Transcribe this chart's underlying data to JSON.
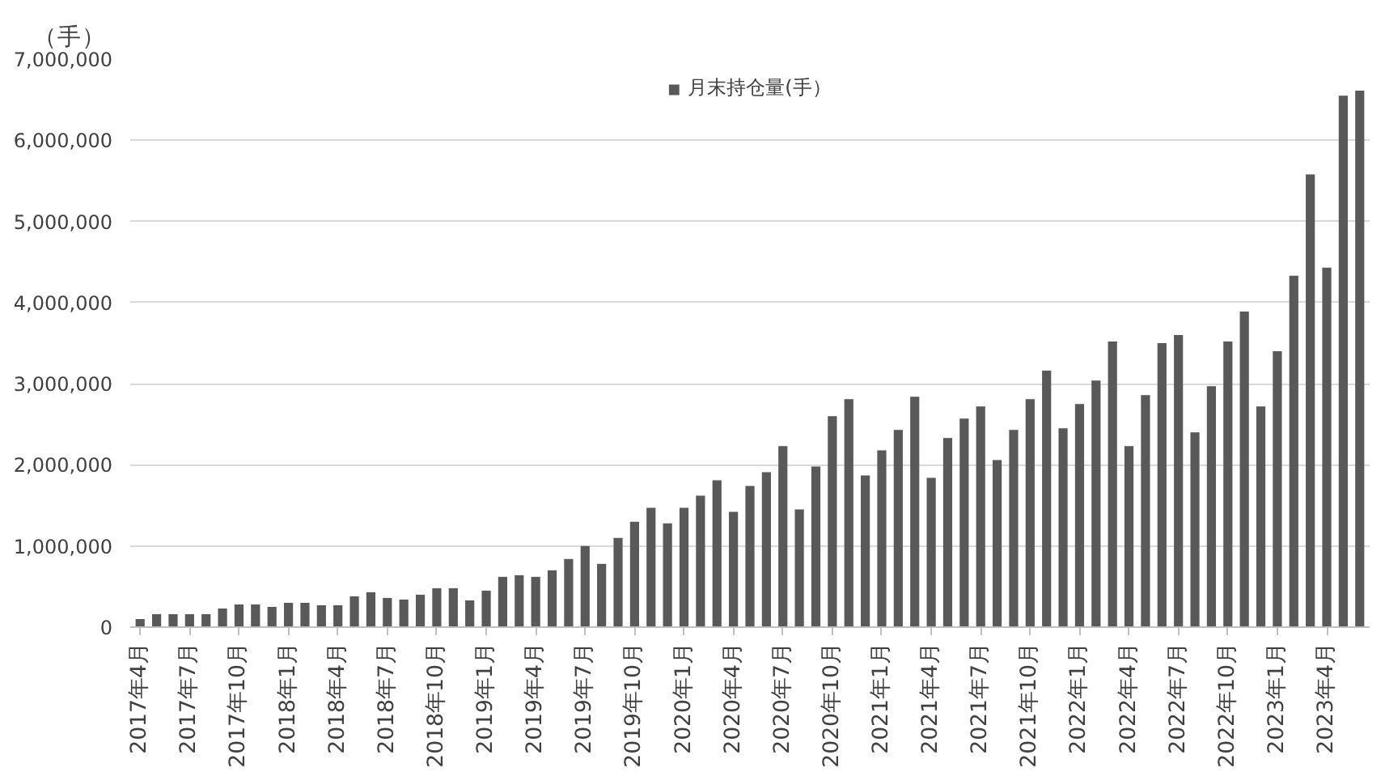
{
  "chart_data": {
    "type": "bar",
    "ylabel": "（手）",
    "categories": [
      "2017年4月",
      null,
      null,
      "2017年7月",
      null,
      null,
      "2017年10月",
      null,
      null,
      "2018年1月",
      null,
      null,
      "2018年4月",
      null,
      null,
      "2018年7月",
      null,
      null,
      "2018年10月",
      null,
      null,
      "2019年1月",
      null,
      null,
      "2019年4月",
      null,
      null,
      "2019年7月",
      null,
      null,
      "2019年10月",
      null,
      null,
      "2020年1月",
      null,
      null,
      "2020年4月",
      null,
      null,
      "2020年7月",
      null,
      null,
      "2020年10月",
      null,
      null,
      "2021年1月",
      null,
      null,
      "2021年4月",
      null,
      null,
      "2021年7月",
      null,
      null,
      "2021年10月",
      null,
      null,
      "2022年1月",
      null,
      null,
      "2022年4月",
      null,
      null,
      "2022年7月",
      null,
      null,
      "2022年10月",
      null,
      null,
      "2023年1月",
      null,
      null,
      "2023年4月",
      null,
      null
    ],
    "series": [
      {
        "name": "月末持仓量(手）",
        "color": "#595959",
        "values": [
          100000,
          160000,
          160000,
          160000,
          160000,
          230000,
          280000,
          280000,
          250000,
          300000,
          300000,
          270000,
          270000,
          380000,
          430000,
          360000,
          340000,
          400000,
          480000,
          480000,
          330000,
          450000,
          620000,
          640000,
          620000,
          700000,
          840000,
          1000000,
          780000,
          1100000,
          1300000,
          1470000,
          1280000,
          1470000,
          1620000,
          1810000,
          1420000,
          1740000,
          1910000,
          2230000,
          1450000,
          1980000,
          2600000,
          2810000,
          1870000,
          2180000,
          2430000,
          2840000,
          1840000,
          2330000,
          2570000,
          2720000,
          2060000,
          2430000,
          2810000,
          3160000,
          2450000,
          2750000,
          3040000,
          3520000,
          2230000,
          2860000,
          3500000,
          3600000,
          2400000,
          2970000,
          3520000,
          3890000,
          2720000,
          3400000,
          4330000,
          5580000,
          4430000,
          6550000,
          6610000
        ]
      }
    ],
    "ylim": [
      0,
      7000000
    ],
    "yticks": [
      {
        "value": 0,
        "label": "0"
      },
      {
        "value": 1000000,
        "label": "1,000,000"
      },
      {
        "value": 2000000,
        "label": "2,000,000"
      },
      {
        "value": 3000000,
        "label": "3,000,000"
      },
      {
        "value": 4000000,
        "label": "4,000,000"
      },
      {
        "value": 5000000,
        "label": "5,000,000"
      },
      {
        "value": 6000000,
        "label": "6,000,000"
      },
      {
        "value": 7000000,
        "label": "7,000,000"
      }
    ],
    "grid": "y",
    "legend": "top"
  }
}
